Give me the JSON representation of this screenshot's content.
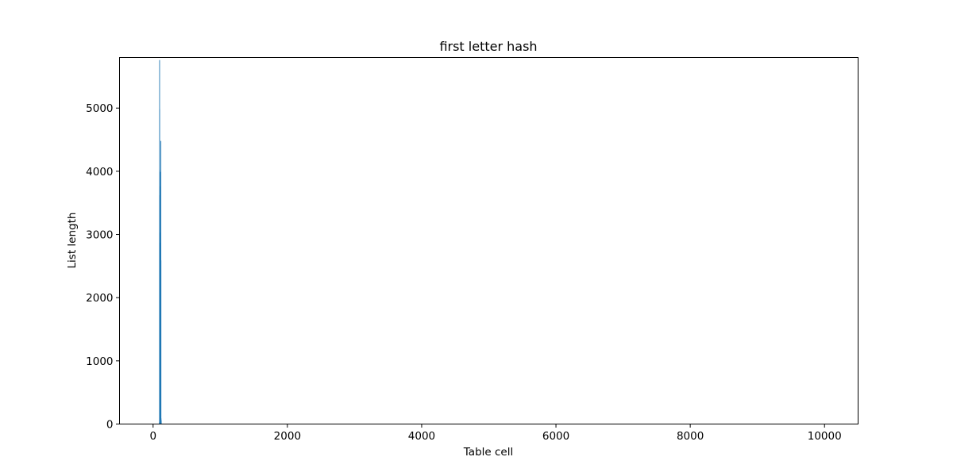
{
  "chart_data": {
    "type": "bar",
    "title": "first letter hash",
    "xlabel": "Table cell",
    "ylabel": "List length",
    "xlim": [
      -500,
      10500
    ],
    "ylim": [
      0,
      5800
    ],
    "xticks": [
      0,
      2000,
      4000,
      6000,
      8000,
      10000
    ],
    "yticks": [
      0,
      1000,
      2000,
      3000,
      4000,
      5000
    ],
    "bar_color": "#1f77b4",
    "grid": false,
    "legend": "none",
    "series": [
      {
        "x": [
          95,
          96,
          97,
          98,
          99,
          100,
          101,
          102,
          103,
          104,
          105,
          106,
          107,
          108,
          109,
          110,
          111,
          112,
          113,
          114,
          115,
          116,
          117,
          118,
          119,
          120,
          121,
          122
        ],
        "values": [
          30,
          3620,
          5760,
          4980,
          4020,
          3760,
          3030,
          2830,
          2870,
          1830,
          1550,
          1700,
          2820,
          1560,
          1270,
          2590,
          2660,
          3990,
          110,
          1680,
          60,
          4480,
          2590,
          90,
          40,
          20,
          60,
          20
        ]
      }
    ]
  }
}
